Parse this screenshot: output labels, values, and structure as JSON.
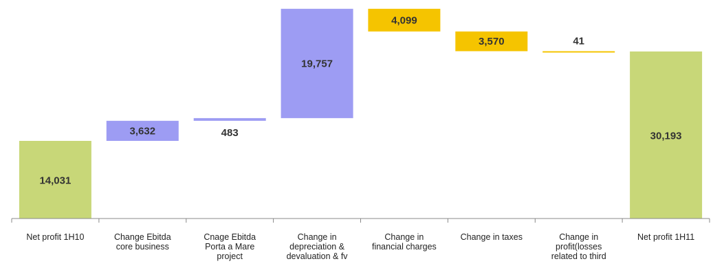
{
  "chart_data": {
    "type": "waterfall",
    "title": "",
    "xlabel": "",
    "ylabel": "",
    "ylim": [
      0,
      38000
    ],
    "grid": false,
    "legend": "none",
    "categories": [
      [
        "Net profit 1H10"
      ],
      [
        "Change Ebitda",
        "core business"
      ],
      [
        "Cnage Ebitda",
        "Porta a Mare",
        "project"
      ],
      [
        "Change in",
        "depreciation &",
        "devaluation & fv"
      ],
      [
        "Change in",
        "financial charges"
      ],
      [
        "Change in taxes"
      ],
      [
        "Change in",
        "profit(losses",
        "related to third"
      ],
      [
        "Net profit 1H11"
      ]
    ],
    "steps": [
      {
        "value": 14031,
        "label": "14,031",
        "kind": "total",
        "label_position": "inside"
      },
      {
        "value": 3632,
        "label": "3,632",
        "kind": "increase",
        "label_position": "inside"
      },
      {
        "value": 483,
        "label": "483",
        "kind": "increase",
        "label_position": "below"
      },
      {
        "value": 19757,
        "label": "19,757",
        "kind": "increase",
        "label_position": "inside"
      },
      {
        "value": -4099,
        "label": "4,099",
        "kind": "decrease",
        "label_position": "inside"
      },
      {
        "value": -3570,
        "label": "3,570",
        "kind": "decrease",
        "label_position": "inside"
      },
      {
        "value": -41,
        "label": "41",
        "kind": "decrease",
        "label_position": "above"
      },
      {
        "value": 30193,
        "label": "30,193",
        "kind": "total",
        "label_position": "inside"
      }
    ],
    "colors": {
      "total": "#c8d778",
      "increase": "#9d9cf3",
      "decrease": "#f5c400",
      "axis": "#888888"
    }
  }
}
